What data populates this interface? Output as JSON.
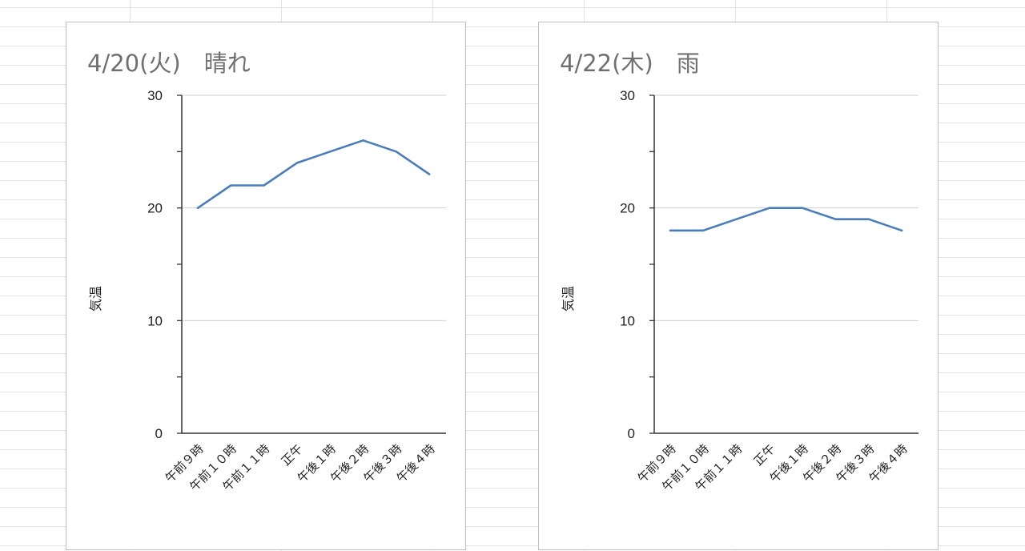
{
  "chart_data": [
    {
      "type": "line",
      "title": "4/20(火)　晴れ",
      "xlabel": "",
      "ylabel": "気温",
      "categories": [
        "午前９時",
        "午前１０時",
        "午前１１時",
        "正午",
        "午後１時",
        "午後２時",
        "午後３時",
        "午後４時"
      ],
      "values": [
        20,
        22,
        22,
        24,
        25,
        26,
        25,
        23
      ],
      "ylim": [
        0,
        30
      ],
      "yticks": [
        0,
        10,
        20,
        30
      ],
      "grid": true,
      "color": "#4a7ebb"
    },
    {
      "type": "line",
      "title": "4/22(木)　雨",
      "xlabel": "",
      "ylabel": "気温",
      "categories": [
        "午前９時",
        "午前１０時",
        "午前１１時",
        "正午",
        "午後１時",
        "午後２時",
        "午後３時",
        "午後４時"
      ],
      "values": [
        18,
        18,
        19,
        20,
        20,
        19,
        19,
        18
      ],
      "ylim": [
        0,
        30
      ],
      "yticks": [
        0,
        10,
        20,
        30
      ],
      "grid": true,
      "color": "#4a7ebb"
    }
  ]
}
